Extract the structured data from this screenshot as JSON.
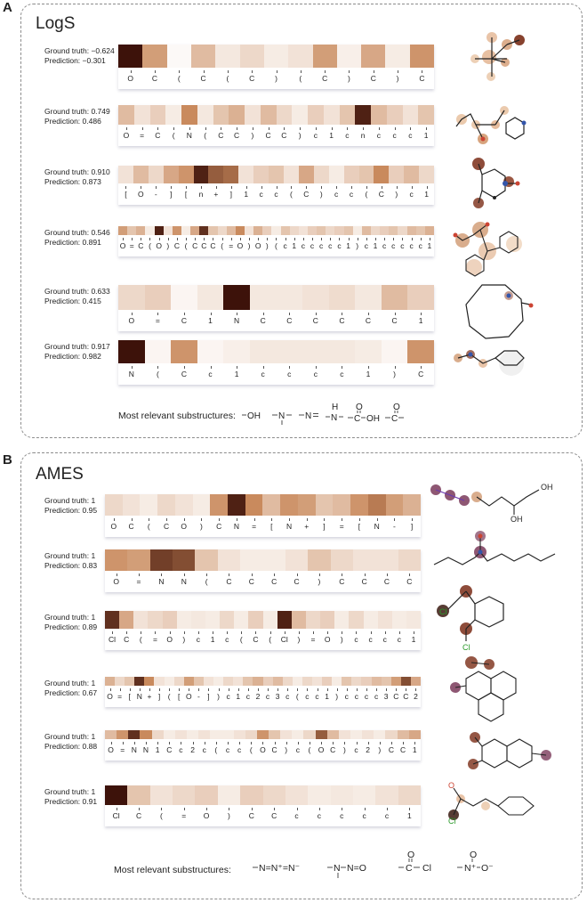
{
  "colors": {
    "scale_low": "#ffffff",
    "scale_mid": "#c98a5d",
    "scale_high": "#3d120a"
  },
  "panels": [
    {
      "letter": "A",
      "title": "LogS",
      "legend_label": "Most relevant substructures:",
      "substructures": [
        "–OH",
        "–N–",
        "–N=",
        "–N–",
        "–C–OH",
        "–C–"
      ],
      "rows": [
        {
          "gt": "Ground truth: −0.624",
          "pred": "Prediction: −0.301",
          "tokens": [
            "O",
            "C",
            "(",
            "C",
            "(",
            "C",
            ")",
            "(",
            "C",
            ")",
            "C",
            ")",
            "C"
          ],
          "weights": [
            1.0,
            0.5,
            0.03,
            0.35,
            0.12,
            0.2,
            0.1,
            0.15,
            0.5,
            0.08,
            0.45,
            0.1,
            0.55
          ]
        },
        {
          "gt": "Ground truth: 0.749",
          "pred": "Prediction: 0.486",
          "tokens": [
            "O",
            "=",
            "C",
            "(",
            "N",
            "(",
            "C",
            "C",
            ")",
            "C",
            "C",
            ")",
            "c",
            "1",
            "c",
            "n",
            "c",
            "c",
            "c",
            "1"
          ],
          "weights": [
            0.35,
            0.15,
            0.25,
            0.1,
            0.6,
            0.12,
            0.3,
            0.4,
            0.15,
            0.35,
            0.2,
            0.1,
            0.25,
            0.15,
            0.3,
            0.95,
            0.35,
            0.25,
            0.15,
            0.3
          ]
        },
        {
          "gt": "Ground truth: 0.910",
          "pred": "Prediction: 0.873",
          "tokens": [
            "[",
            "O",
            "-",
            "]",
            "[",
            "n",
            "+",
            "]",
            "1",
            "c",
            "c",
            "(",
            "C",
            ")",
            "c",
            "c",
            "(",
            "C",
            ")",
            "c",
            "1"
          ],
          "weights": [
            0.15,
            0.35,
            0.2,
            0.45,
            0.55,
            0.95,
            0.75,
            0.7,
            0.15,
            0.25,
            0.3,
            0.15,
            0.45,
            0.2,
            0.1,
            0.25,
            0.3,
            0.6,
            0.25,
            0.35,
            0.2
          ]
        },
        {
          "gt": "Ground truth: 0.546",
          "pred": "Prediction: 0.891",
          "tokens": [
            "O",
            "=",
            "C",
            "(",
            "O",
            ")",
            "C",
            "(",
            "C",
            "C",
            "C",
            "(",
            "=",
            "O",
            ")",
            "O",
            ")",
            "(",
            "c",
            "1",
            "c",
            "c",
            "c",
            "c",
            "c",
            "1",
            ")",
            "c",
            "1",
            "c",
            "c",
            "c",
            "c",
            "c",
            "1"
          ],
          "weights": [
            0.5,
            0.3,
            0.4,
            0.1,
            0.95,
            0.15,
            0.55,
            0.1,
            0.45,
            0.9,
            0.3,
            0.2,
            0.35,
            0.6,
            0.15,
            0.4,
            0.25,
            0.1,
            0.3,
            0.2,
            0.15,
            0.25,
            0.3,
            0.2,
            0.25,
            0.3,
            0.1,
            0.35,
            0.2,
            0.25,
            0.3,
            0.2,
            0.35,
            0.3,
            0.4
          ]
        },
        {
          "gt": "Ground truth: 0.633",
          "pred": "Prediction: 0.415",
          "tokens": [
            "O",
            "=",
            "C",
            "1",
            "N",
            "C",
            "C",
            "C",
            "C",
            "C",
            "C",
            "1"
          ],
          "weights": [
            0.2,
            0.25,
            0.05,
            0.12,
            1.0,
            0.12,
            0.12,
            0.15,
            0.18,
            0.12,
            0.35,
            0.25
          ]
        },
        {
          "gt": "Ground truth: 0.917",
          "pred": "Prediction: 0.982",
          "tokens": [
            "N",
            "(",
            "C",
            "c",
            "1",
            "c",
            "c",
            "c",
            "c",
            "1",
            ")",
            "C"
          ],
          "weights": [
            1.0,
            0.05,
            0.55,
            0.05,
            0.08,
            0.12,
            0.12,
            0.12,
            0.12,
            0.1,
            0.05,
            0.55
          ]
        }
      ]
    },
    {
      "letter": "B",
      "title": "AMES",
      "legend_label": "Most relevant substructures:",
      "substructures": [
        "–N=N⁺=N⁻",
        "–N–N=O",
        "–C–Cl",
        "–N⁺–O⁻"
      ],
      "rows": [
        {
          "gt": "Ground truth: 1",
          "pred": "Prediction: 0.95",
          "tokens": [
            "O",
            "C",
            "(",
            "C",
            "O",
            ")",
            "C",
            "N",
            "=",
            "[",
            "N",
            "+",
            "]",
            "=",
            "[",
            "N",
            "-",
            "]"
          ],
          "weights": [
            0.2,
            0.15,
            0.1,
            0.2,
            0.15,
            0.1,
            0.55,
            0.95,
            0.6,
            0.35,
            0.55,
            0.5,
            0.3,
            0.35,
            0.55,
            0.65,
            0.5,
            0.4
          ]
        },
        {
          "gt": "Ground truth: 1",
          "pred": "Prediction: 0.83",
          "tokens": [
            "O",
            "=",
            "N",
            "N",
            "(",
            "C",
            "C",
            "C",
            "C",
            ")",
            "C",
            "C",
            "C",
            "C"
          ],
          "weights": [
            0.55,
            0.5,
            0.85,
            0.8,
            0.3,
            0.15,
            0.1,
            0.1,
            0.15,
            0.3,
            0.2,
            0.15,
            0.15,
            0.2
          ]
        },
        {
          "gt": "Ground truth: 1",
          "pred": "Prediction: 0.89",
          "tokens": [
            "Cl",
            "C",
            "(",
            "=",
            "O",
            ")",
            "c",
            "1",
            "c",
            "(",
            "C",
            "(",
            "Cl",
            ")",
            "=",
            "O",
            ")",
            "c",
            "c",
            "c",
            "c",
            "1"
          ],
          "weights": [
            0.9,
            0.45,
            0.15,
            0.2,
            0.25,
            0.1,
            0.12,
            0.1,
            0.2,
            0.1,
            0.25,
            0.1,
            0.95,
            0.35,
            0.2,
            0.25,
            0.1,
            0.2,
            0.1,
            0.15,
            0.1,
            0.12
          ]
        },
        {
          "gt": "Ground truth: 1",
          "pred": "Prediction: 0.67",
          "tokens": [
            "O",
            "=",
            "[",
            "N",
            "+",
            "]",
            "(",
            "[",
            "O",
            "-",
            "]",
            ")",
            "c",
            "1",
            "c",
            "2",
            "c",
            "3",
            "c",
            "(",
            "c",
            "c",
            "1",
            ")",
            "c",
            "c",
            "c",
            "c",
            "3",
            "C",
            "C",
            "2"
          ],
          "weights": [
            0.4,
            0.2,
            0.3,
            0.9,
            0.6,
            0.15,
            0.1,
            0.2,
            0.5,
            0.3,
            0.15,
            0.1,
            0.2,
            0.15,
            0.3,
            0.4,
            0.25,
            0.35,
            0.2,
            0.1,
            0.2,
            0.15,
            0.25,
            0.1,
            0.3,
            0.2,
            0.25,
            0.35,
            0.3,
            0.5,
            0.8,
            0.45
          ]
        },
        {
          "gt": "Ground truth: 1",
          "pred": "Prediction: 0.88",
          "tokens": [
            "O",
            "=",
            "N",
            "N",
            "1",
            "C",
            "c",
            "2",
            "c",
            "(",
            "c",
            "c",
            "(",
            "O",
            "C",
            ")",
            "c",
            "(",
            "O",
            "C",
            ")",
            "c",
            "2",
            ")",
            "C",
            "C",
            "1"
          ],
          "weights": [
            0.35,
            0.55,
            0.9,
            0.6,
            0.2,
            0.1,
            0.15,
            0.1,
            0.15,
            0.1,
            0.1,
            0.15,
            0.2,
            0.55,
            0.3,
            0.15,
            0.1,
            0.2,
            0.75,
            0.35,
            0.15,
            0.1,
            0.15,
            0.1,
            0.2,
            0.35,
            0.45
          ]
        },
        {
          "gt": "Ground truth: 1",
          "pred": "Prediction: 0.91",
          "tokens": [
            "Cl",
            "C",
            "(",
            "=",
            "O",
            ")",
            "C",
            "C",
            "c",
            "c",
            "c",
            "c",
            "c",
            "1"
          ],
          "weights": [
            1.0,
            0.3,
            0.15,
            0.2,
            0.25,
            0.1,
            0.25,
            0.2,
            0.15,
            0.1,
            0.12,
            0.1,
            0.15,
            0.2
          ]
        }
      ]
    }
  ]
}
